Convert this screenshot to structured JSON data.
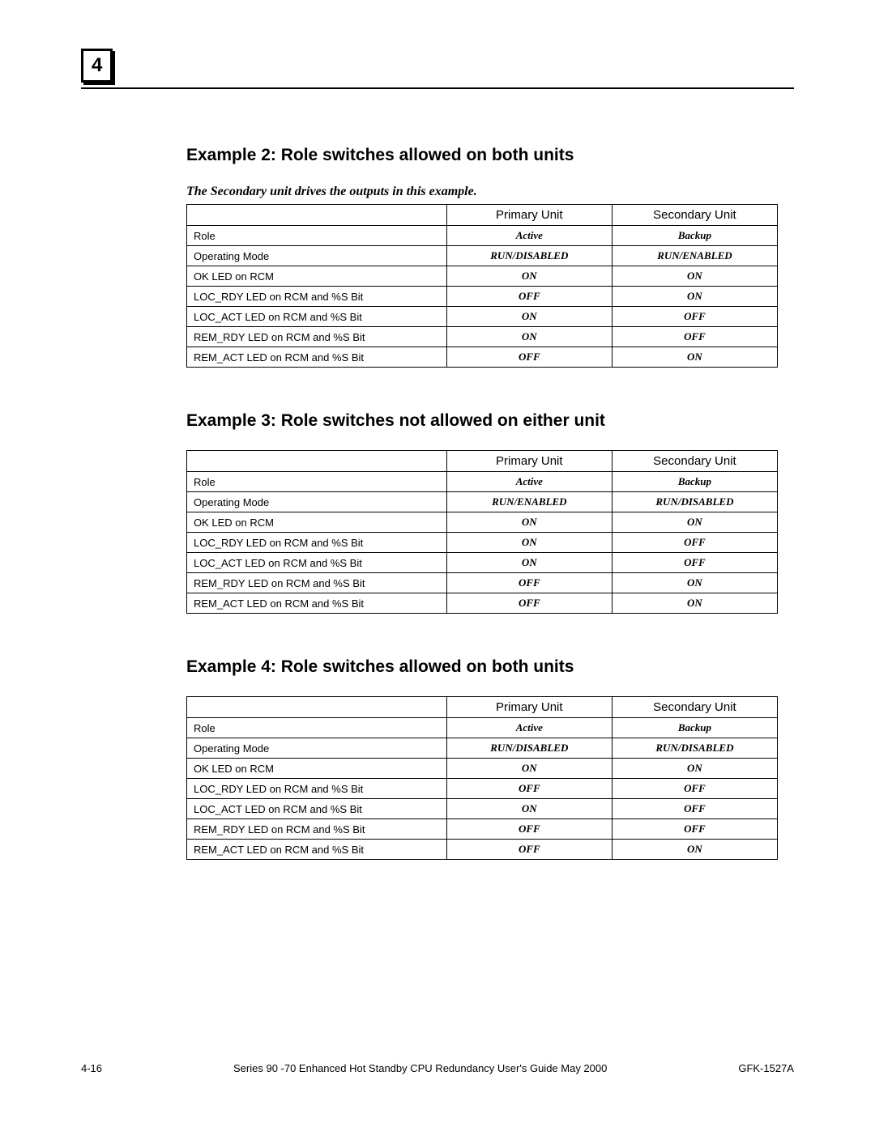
{
  "chapter": "4",
  "example2": {
    "title": "Example 2: Role switches allowed on both units",
    "subtitle": "The Secondary unit drives the outputs in this example.",
    "col1": "Primary Unit",
    "col2": "Secondary Unit",
    "rows": [
      {
        "label": "Role",
        "p": "Active",
        "s": "Backup"
      },
      {
        "label": "Operating Mode",
        "p": "RUN/DISABLED",
        "s": "RUN/ENABLED"
      },
      {
        "label": "OK LED on RCM",
        "p": "ON",
        "s": "ON"
      },
      {
        "label": "LOC_RDY LED on RCM and %S Bit",
        "p": "OFF",
        "s": "ON"
      },
      {
        "label": "LOC_ACT LED on RCM and %S Bit",
        "p": "ON",
        "s": "OFF"
      },
      {
        "label": "REM_RDY LED on RCM and %S Bit",
        "p": "ON",
        "s": "OFF"
      },
      {
        "label": "REM_ACT LED on RCM and %S Bit",
        "p": "OFF",
        "s": "ON"
      }
    ]
  },
  "example3": {
    "title": "Example 3: Role switches not allowed on either unit",
    "col1": "Primary Unit",
    "col2": "Secondary Unit",
    "rows": [
      {
        "label": "Role",
        "p": "Active",
        "s": "Backup"
      },
      {
        "label": "Operating Mode",
        "p": "RUN/ENABLED",
        "s": "RUN/DISABLED"
      },
      {
        "label": "OK LED on RCM",
        "p": "ON",
        "s": "ON"
      },
      {
        "label": "LOC_RDY LED on RCM and %S Bit",
        "p": "ON",
        "s": "OFF"
      },
      {
        "label": "LOC_ACT LED on RCM and %S Bit",
        "p": "ON",
        "s": "OFF"
      },
      {
        "label": "REM_RDY LED on RCM and %S Bit",
        "p": "OFF",
        "s": "ON"
      },
      {
        "label": "REM_ACT LED on RCM and %S Bit",
        "p": "OFF",
        "s": "ON"
      }
    ]
  },
  "example4": {
    "title": "Example 4: Role switches allowed on both units",
    "col1": "Primary Unit",
    "col2": "Secondary Unit",
    "rows": [
      {
        "label": "Role",
        "p": "Active",
        "s": "Backup"
      },
      {
        "label": "Operating Mode",
        "p": "RUN/DISABLED",
        "s": "RUN/DISABLED"
      },
      {
        "label": "OK LED on RCM",
        "p": "ON",
        "s": "ON"
      },
      {
        "label": "LOC_RDY LED on RCM and %S Bit",
        "p": "OFF",
        "s": "OFF"
      },
      {
        "label": "LOC_ACT LED on RCM and %S Bit",
        "p": "ON",
        "s": "OFF"
      },
      {
        "label": "REM_RDY LED on RCM and %S Bit",
        "p": "OFF",
        "s": "OFF"
      },
      {
        "label": "REM_ACT LED on RCM and %S Bit",
        "p": "OFF",
        "s": "ON"
      }
    ]
  },
  "footer": {
    "left": "4-16",
    "center": "Series 90 -70 Enhanced Hot Standby CPU Redundancy User's Guide May 2000",
    "right": "GFK-1527A"
  }
}
